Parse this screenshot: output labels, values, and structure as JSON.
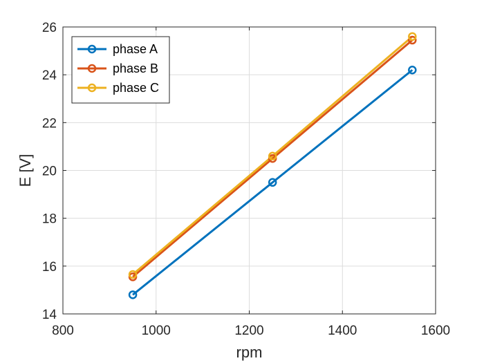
{
  "chart_data": {
    "type": "line",
    "title": "",
    "xlabel": "rpm",
    "ylabel": "E [V]",
    "xlim": [
      800,
      1600
    ],
    "ylim": [
      14,
      26
    ],
    "x_ticks": [
      800,
      1000,
      1200,
      1400,
      1600
    ],
    "y_ticks": [
      14,
      16,
      18,
      20,
      22,
      24,
      26
    ],
    "x_tick_labels": [
      "800",
      "1000",
      "1200",
      "1400",
      "1600"
    ],
    "y_tick_labels": [
      "14",
      "16",
      "18",
      "20",
      "22",
      "24",
      "26"
    ],
    "grid": true,
    "legend_position": "top-left",
    "x": [
      950,
      1250,
      1550
    ],
    "series": [
      {
        "name": "phase A",
        "color": "#0072BD",
        "values": [
          14.8,
          19.5,
          24.2
        ]
      },
      {
        "name": "phase B",
        "color": "#D95319",
        "values": [
          15.55,
          20.5,
          25.45
        ]
      },
      {
        "name": "phase C",
        "color": "#EDB120",
        "values": [
          15.65,
          20.6,
          25.6
        ]
      }
    ]
  }
}
